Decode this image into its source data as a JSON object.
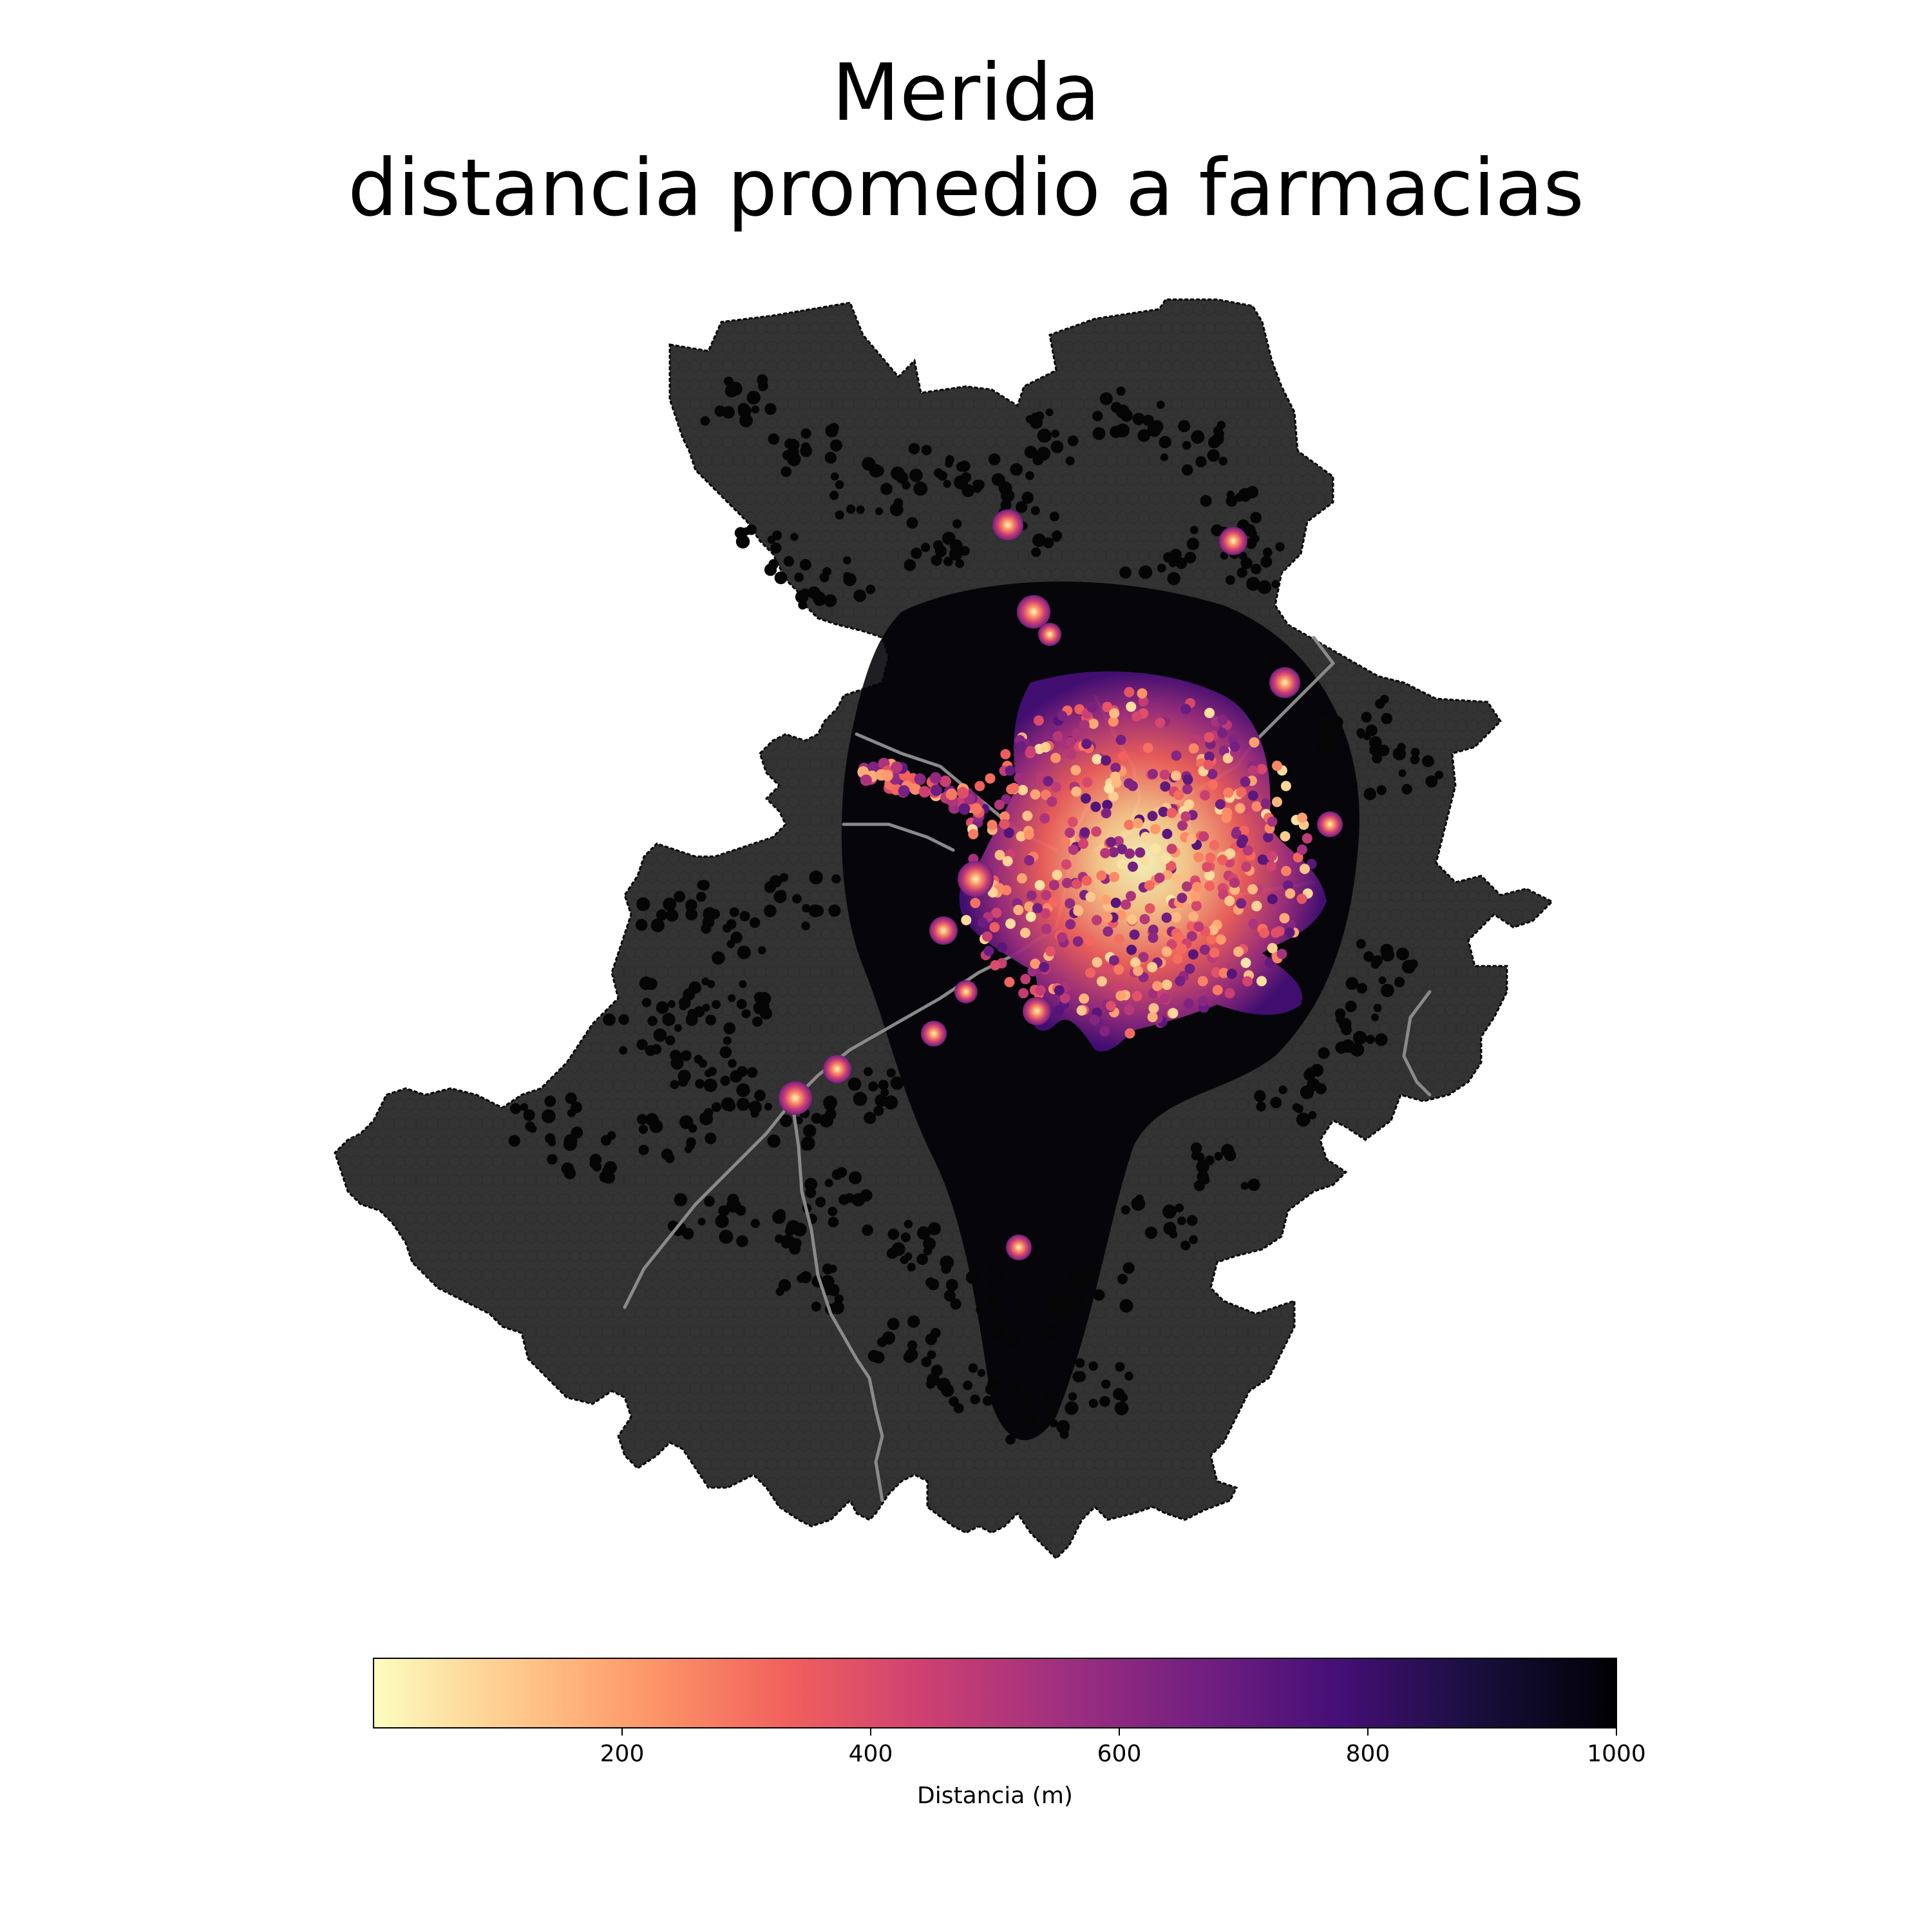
{
  "title": {
    "line1": "Merida",
    "line2": "distancia promedio a farmacias"
  },
  "map": {
    "land_color": "#333333",
    "outline_color": "#000000",
    "road_color": "#8a8a8a",
    "out_of_range_color": "#000004",
    "legend_position": "bottom"
  },
  "colorbar": {
    "label": "Distancia (m)",
    "colormap": "magma_r",
    "vmin": 0,
    "vmax": 1000,
    "ticks": [
      {
        "value": 200,
        "label": "200"
      },
      {
        "value": 400,
        "label": "400"
      },
      {
        "value": 600,
        "label": "600"
      },
      {
        "value": 800,
        "label": "800"
      },
      {
        "value": 1000,
        "label": "1000"
      }
    ],
    "color_stops": [
      "#fcfdbf",
      "#feca8d",
      "#fd9668",
      "#f1605d",
      "#cd4071",
      "#9e2f7f",
      "#721f81",
      "#440f76",
      "#180f3d",
      "#000004"
    ]
  }
}
